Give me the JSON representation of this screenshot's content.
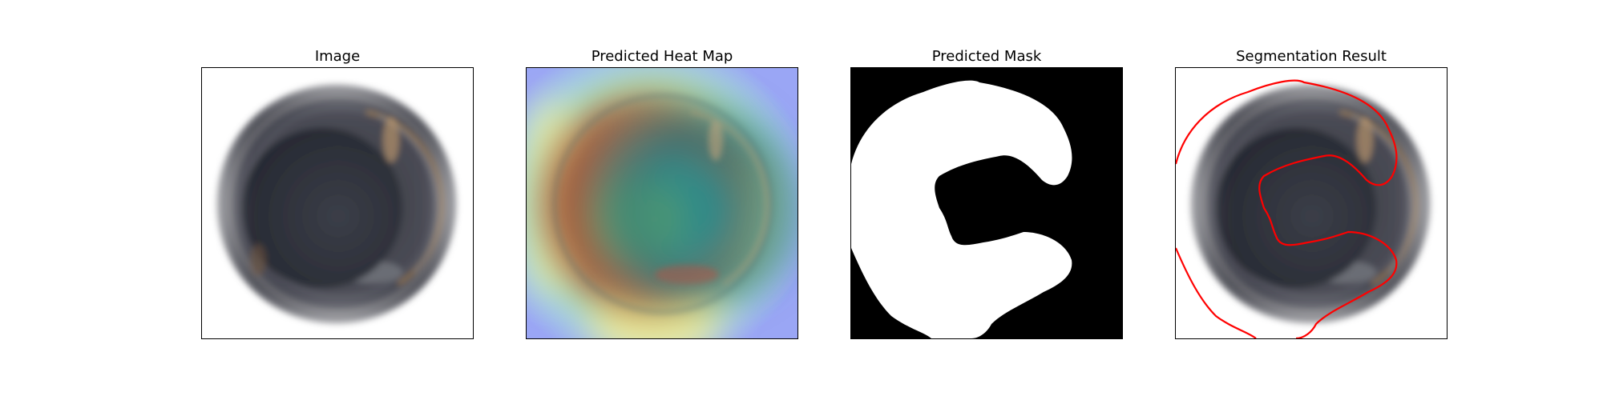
{
  "figure": {
    "panels": [
      {
        "title": "Image"
      },
      {
        "title": "Predicted Heat Map"
      },
      {
        "title": "Predicted Mask"
      },
      {
        "title": "Segmentation Result"
      }
    ],
    "contour_color": "#ff0000",
    "mask_foreground_color": "#ffffff",
    "mask_background_color": "#000000"
  }
}
